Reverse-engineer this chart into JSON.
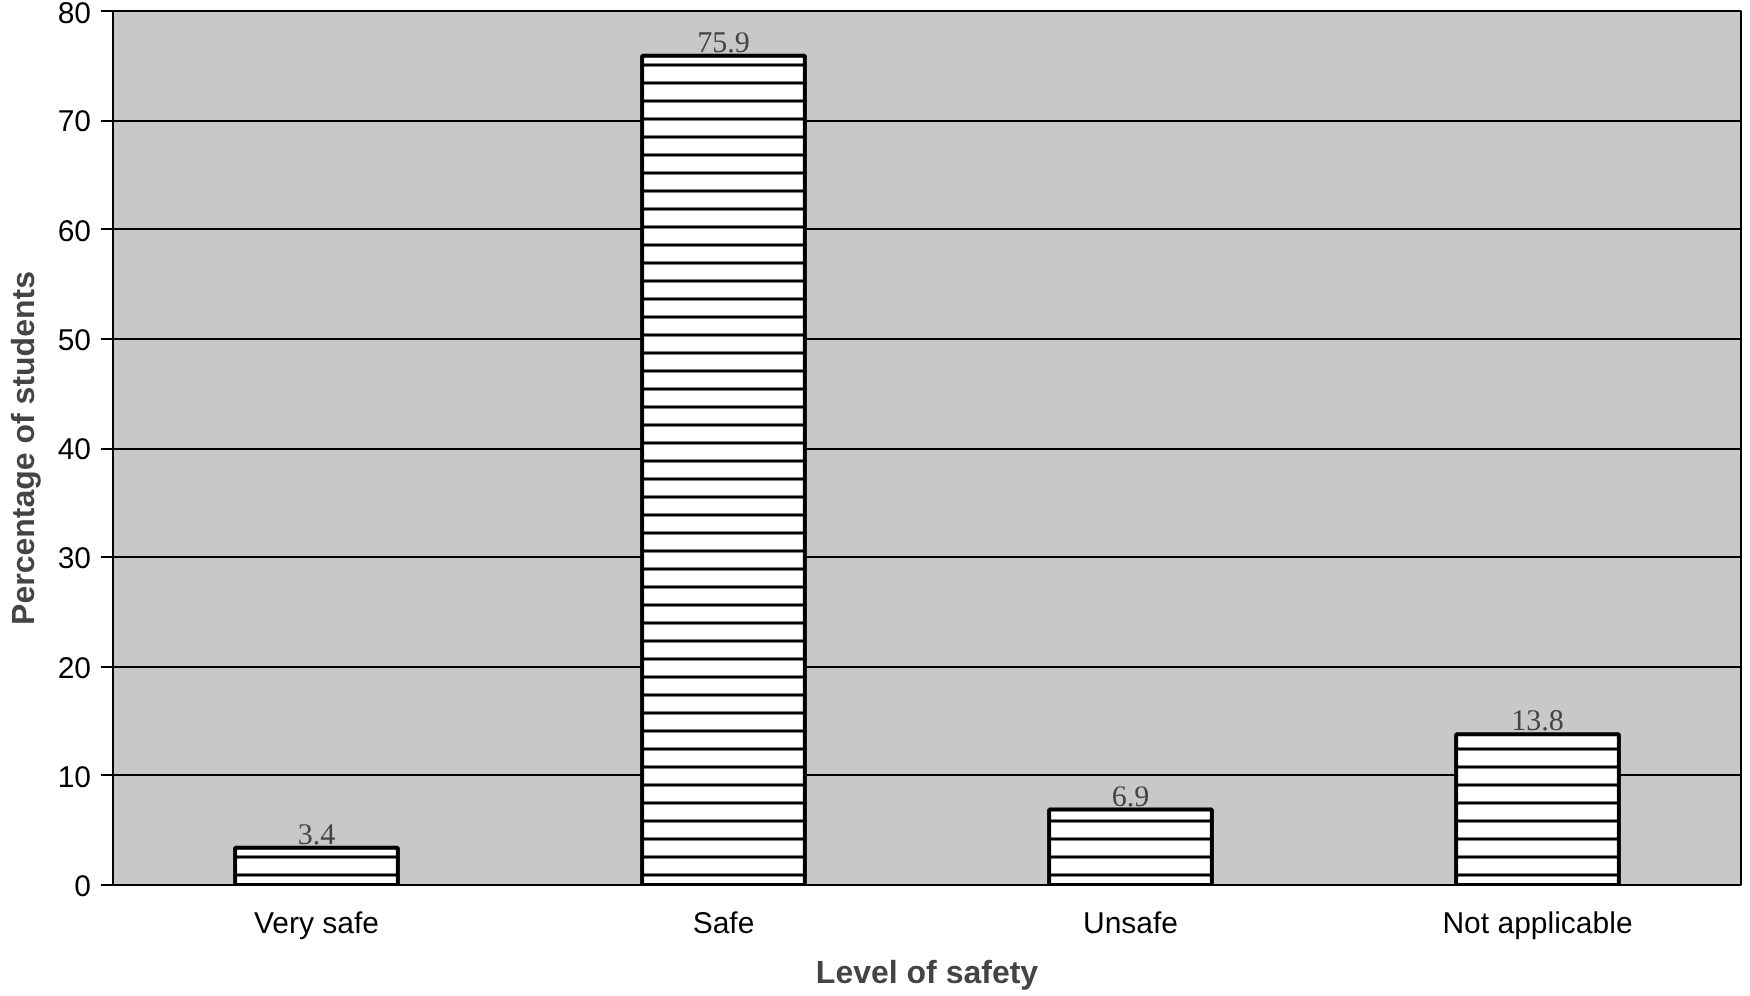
{
  "chart_data": {
    "type": "bar",
    "xlabel": "Level of safety",
    "ylabel": "Percentage of students",
    "categories": [
      "Very safe",
      "Safe",
      "Unsafe",
      "Not applicable"
    ],
    "values": [
      3.4,
      75.9,
      6.9,
      13.8
    ],
    "color": "#ffffff",
    "ylim": [
      0,
      80
    ],
    "yticks": [
      0,
      10,
      20,
      30,
      40,
      50,
      60,
      70,
      80
    ],
    "grid": "y",
    "data_labels": true
  }
}
